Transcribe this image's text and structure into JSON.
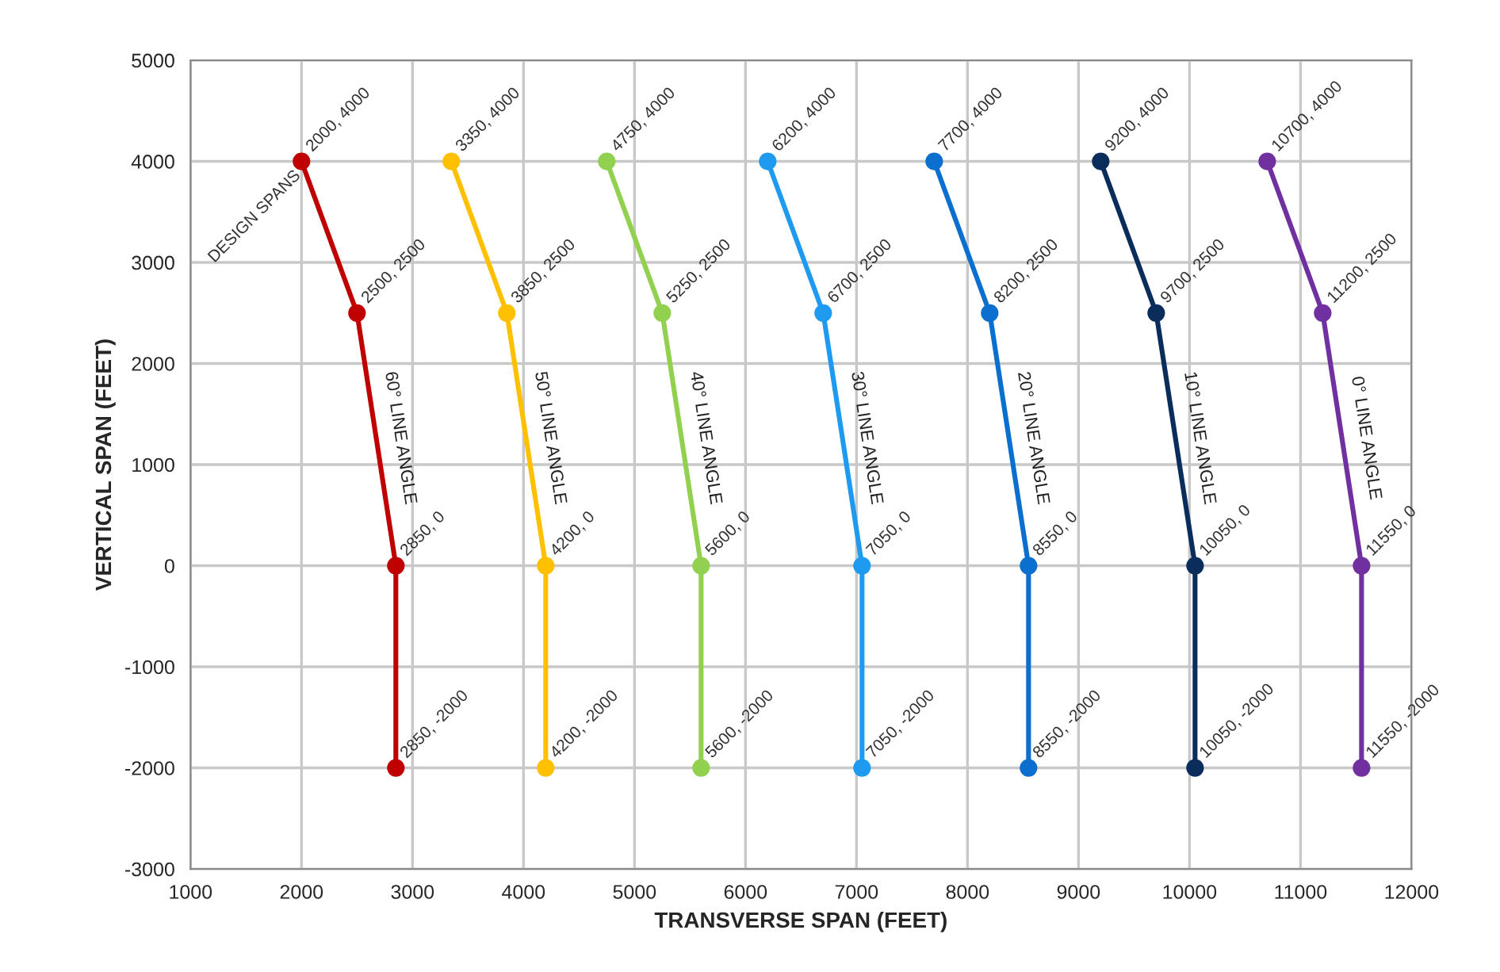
{
  "chart_data": {
    "type": "line",
    "xlabel": "TRANSVERSE SPAN (FEET)",
    "ylabel": "VERTICAL SPAN (FEET)",
    "xlim": [
      1000,
      12000
    ],
    "xticks": [
      1000,
      2000,
      3000,
      4000,
      5000,
      6000,
      7000,
      8000,
      9000,
      10000,
      11000,
      12000
    ],
    "ylim": [
      -3000,
      5000
    ],
    "yticks": [
      -3000,
      -2000,
      -1000,
      0,
      1000,
      2000,
      3000,
      4000,
      5000
    ],
    "grid": true,
    "marker": "circle",
    "line_style": "solid",
    "series": [
      {
        "name": "60° LINE ANGLE",
        "color": "#c00000",
        "x": [
          2000,
          2500,
          2850,
          2850
        ],
        "values": [
          4000,
          2500,
          0,
          -2000
        ],
        "value_labels": [
          "2000, 4000",
          "2500, 2500",
          "2850, 0",
          "2850, -2000"
        ]
      },
      {
        "name": "50° LINE ANGLE",
        "color": "#ffc000",
        "x": [
          3350,
          3850,
          4200,
          4200
        ],
        "values": [
          4000,
          2500,
          0,
          -2000
        ],
        "value_labels": [
          "3350, 4000",
          "3850, 2500",
          "4200, 0",
          "4200, -2000"
        ]
      },
      {
        "name": "40° LINE ANGLE",
        "color": "#92d050",
        "x": [
          4750,
          5250,
          5600,
          5600
        ],
        "values": [
          4000,
          2500,
          0,
          -2000
        ],
        "value_labels": [
          "4750, 4000",
          "5250, 2500",
          "5600, 0",
          "5600, -2000"
        ]
      },
      {
        "name": "30° LINE ANGLE",
        "color": "#1e9bf0",
        "x": [
          6200,
          6700,
          7050,
          7050
        ],
        "values": [
          4000,
          2500,
          0,
          -2000
        ],
        "value_labels": [
          "6200, 4000",
          "6700, 2500",
          "7050, 0",
          "7050, -2000"
        ]
      },
      {
        "name": "20° LINE ANGLE",
        "color": "#0b6fcf",
        "x": [
          7700,
          8200,
          8550,
          8550
        ],
        "values": [
          4000,
          2500,
          0,
          -2000
        ],
        "value_labels": [
          "7700, 4000",
          "8200, 2500",
          "8550, 0",
          "8550, -2000"
        ]
      },
      {
        "name": "10° LINE ANGLE",
        "color": "#0a2d5c",
        "x": [
          9200,
          9700,
          10050,
          10050
        ],
        "values": [
          4000,
          2500,
          0,
          -2000
        ],
        "value_labels": [
          "9200, 4000",
          "9700, 2500",
          "10050, 0",
          "10050, -2000"
        ]
      },
      {
        "name": "0° LINE ANGLE",
        "color": "#7030a0",
        "x": [
          10700,
          11200,
          11550,
          11550
        ],
        "values": [
          4000,
          2500,
          0,
          -2000
        ],
        "value_labels": [
          "10700, 4000",
          "11200, 2500",
          "11550, 0",
          "11550, -2000"
        ]
      }
    ],
    "annotations": [
      {
        "text": "DESIGN SPANS",
        "x": 2000,
        "y": 4000
      }
    ]
  }
}
